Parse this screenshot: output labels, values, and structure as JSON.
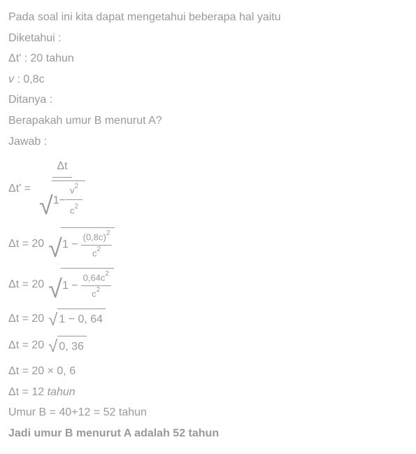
{
  "lines": {
    "intro": "Pada soal ini kita dapat mengetahui beberapa hal yaitu",
    "diketahui": "Diketahui :",
    "dt_prime": "Δt' : 20 tahun",
    "v_label": "v",
    "v_val": "   : 0,8c",
    "ditanya": "Ditanya :",
    "question": "Berapakah umur B menurut A?",
    "jawab": "Jawab :"
  },
  "eq1": {
    "lhs": "Δt'  =  ",
    "num": "Δt",
    "sqrt_content_prefix": "1−",
    "inner_num": "v",
    "inner_den": "c"
  },
  "eq2": {
    "lhs": "Δt  =  20",
    "sqrt_prefix": "1  −  ",
    "frac_num": "(0,8c)",
    "frac_num_sup": "2",
    "frac_den": "c",
    "frac_den_sup": "2"
  },
  "eq3": {
    "lhs": "Δt  =  20",
    "sqrt_prefix": "1  −  ",
    "frac_num": "0,64c",
    "frac_num_sup": "2",
    "frac_den": "c",
    "frac_den_sup": "2"
  },
  "eq4": {
    "text": "Δt  =  20",
    "sqrt_body": "1  −  0, 64"
  },
  "eq5": {
    "text": "Δt  =  20",
    "sqrt_body": "0, 36"
  },
  "eq6": {
    "text": "Δt  =  20  ×  0, 6"
  },
  "eq7": {
    "text": "Δt  =  12 ",
    "unit": "tahun"
  },
  "result1": "Umur B = 40+12 = 52 tahun",
  "result2": "Jadi umur B menurut A adalah 52 tahun"
}
